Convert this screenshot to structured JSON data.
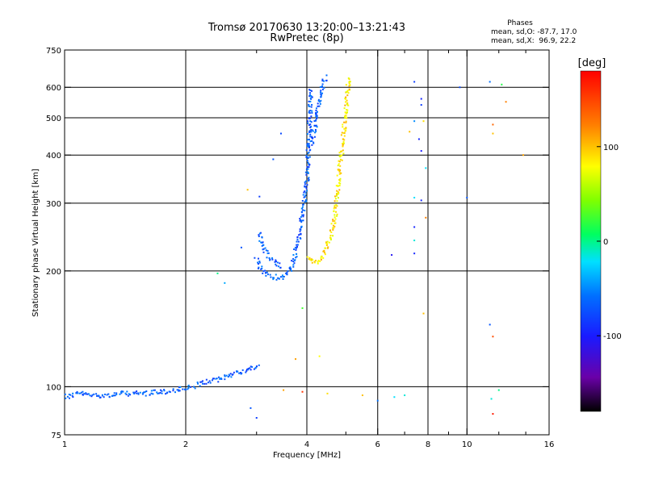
{
  "chart_data": {
    "type": "scatter",
    "title": "Tromsø 20170630 13:20:00–13:21:43",
    "subtitle": "RwPretec (8p)",
    "xlabel": "Frequency [MHz]",
    "ylabel": "Stationary phase Virtual Height [km]",
    "xscale": "log",
    "yscale": "log",
    "xlim": [
      1,
      16
    ],
    "ylim": [
      75,
      750
    ],
    "x_ticks": [
      1,
      2,
      4,
      6,
      8,
      10,
      16
    ],
    "x_tick_labels": [
      "1",
      "2",
      "4",
      "6",
      "8",
      "10",
      "16"
    ],
    "x_minor_ticks": [
      3,
      5,
      7,
      9,
      12,
      14
    ],
    "y_ticks": [
      75,
      100,
      200,
      300,
      400,
      500,
      600,
      750
    ],
    "y_tick_labels": [
      "75",
      "100",
      "200",
      "300",
      "400",
      "500",
      "600",
      "750"
    ],
    "v_grid": [
      2,
      4,
      6,
      8,
      10
    ],
    "h_grid": [
      100,
      200,
      300,
      400,
      500,
      600
    ],
    "phase_info": {
      "header": "Phases",
      "line_o": "mean, sd,O: -87.7, 17.0",
      "line_x": "mean, sd,X:  96.9, 22.2"
    },
    "colorbar": {
      "label": "[deg]",
      "min": -180,
      "max": 180,
      "ticks": [
        100,
        0,
        -100
      ],
      "tick_labels": [
        "100",
        "0",
        "-100"
      ]
    },
    "series": [
      {
        "name": "O-mode",
        "mean_phase": -87.7,
        "sd_phase": 17.0,
        "traces": [
          {
            "x": [
              1.0,
              1.02,
              1.04,
              1.06,
              1.1,
              1.15,
              1.2,
              1.3,
              1.4,
              1.5,
              1.6,
              1.7,
              1.8,
              1.9,
              2.0,
              2.1
            ],
            "y": [
              95,
              94,
              95,
              96,
              96,
              95,
              95,
              95,
              96,
              96,
              96,
              97,
              97,
              98,
              99,
              100
            ]
          },
          {
            "x": [
              2.15,
              2.25,
              2.4,
              2.5,
              2.6,
              2.7,
              2.8,
              2.9,
              3.0,
              3.05
            ],
            "y": [
              101,
              103,
              104,
              106,
              108,
              109,
              110,
              111,
              113,
              114
            ]
          },
          {
            "x": [
              3.0,
              3.05,
              3.1,
              3.2,
              3.3,
              3.4,
              3.5,
              3.6,
              3.7,
              3.8,
              3.9,
              4.0,
              4.05,
              4.1
            ],
            "y": [
              215,
              205,
              200,
              196,
              193,
              192,
              193,
              198,
              210,
              235,
              275,
              340,
              440,
              600
            ]
          },
          {
            "x": [
              3.05,
              3.1,
              3.15,
              3.2,
              3.3,
              3.4,
              3.5
            ],
            "y": [
              250,
              235,
              225,
              218,
              212,
              208,
              205
            ]
          },
          {
            "x": [
              4.1,
              4.2,
              4.3,
              4.4,
              4.5
            ],
            "y": [
              420,
              480,
              560,
              620,
              640
            ]
          }
        ]
      },
      {
        "name": "X-mode",
        "mean_phase": 96.9,
        "sd_phase": 22.2,
        "traces": [
          {
            "x": [
              4.0,
              4.1,
              4.2,
              4.3,
              4.4,
              4.5,
              4.6,
              4.7,
              4.75,
              4.8,
              4.9,
              5.0,
              5.1
            ],
            "y": [
              218,
              214,
              210,
              212,
              220,
              232,
              250,
              280,
              310,
              350,
              420,
              520,
              640
            ]
          }
        ]
      }
    ],
    "scattered_echoes": [
      {
        "x": 3.45,
        "y": 455,
        "phase": -95
      },
      {
        "x": 3.3,
        "y": 390,
        "phase": -90
      },
      {
        "x": 2.4,
        "y": 197,
        "phase": -10
      },
      {
        "x": 2.5,
        "y": 186,
        "phase": -60
      },
      {
        "x": 2.75,
        "y": 230,
        "phase": -90
      },
      {
        "x": 2.85,
        "y": 325,
        "phase": 110
      },
      {
        "x": 3.05,
        "y": 312,
        "phase": -100
      },
      {
        "x": 3.9,
        "y": 160,
        "phase": 20
      },
      {
        "x": 3.75,
        "y": 118,
        "phase": 120
      },
      {
        "x": 4.3,
        "y": 120,
        "phase": 90
      },
      {
        "x": 7.4,
        "y": 620,
        "phase": -100
      },
      {
        "x": 7.7,
        "y": 560,
        "phase": -110
      },
      {
        "x": 7.7,
        "y": 540,
        "phase": -100
      },
      {
        "x": 7.4,
        "y": 490,
        "phase": -70
      },
      {
        "x": 7.8,
        "y": 490,
        "phase": 100
      },
      {
        "x": 7.2,
        "y": 460,
        "phase": 110
      },
      {
        "x": 7.6,
        "y": 440,
        "phase": -110
      },
      {
        "x": 7.7,
        "y": 410,
        "phase": -115
      },
      {
        "x": 7.9,
        "y": 370,
        "phase": -40
      },
      {
        "x": 7.4,
        "y": 310,
        "phase": -40
      },
      {
        "x": 7.7,
        "y": 305,
        "phase": -110
      },
      {
        "x": 7.9,
        "y": 275,
        "phase": 130
      },
      {
        "x": 7.4,
        "y": 260,
        "phase": -110
      },
      {
        "x": 7.4,
        "y": 240,
        "phase": -30
      },
      {
        "x": 6.5,
        "y": 220,
        "phase": -120
      },
      {
        "x": 7.4,
        "y": 222,
        "phase": -110
      },
      {
        "x": 7.8,
        "y": 155,
        "phase": 110
      },
      {
        "x": 9.6,
        "y": 600,
        "phase": -95
      },
      {
        "x": 10.0,
        "y": 310,
        "phase": -90
      },
      {
        "x": 11.4,
        "y": 620,
        "phase": -80
      },
      {
        "x": 12.2,
        "y": 610,
        "phase": 10
      },
      {
        "x": 12.5,
        "y": 550,
        "phase": 130
      },
      {
        "x": 11.6,
        "y": 480,
        "phase": 140
      },
      {
        "x": 11.6,
        "y": 455,
        "phase": 110
      },
      {
        "x": 13.8,
        "y": 400,
        "phase": 120
      },
      {
        "x": 11.4,
        "y": 145,
        "phase": -90
      },
      {
        "x": 11.6,
        "y": 135,
        "phase": 150
      },
      {
        "x": 12.0,
        "y": 98,
        "phase": -10
      },
      {
        "x": 11.5,
        "y": 93,
        "phase": -30
      },
      {
        "x": 11.6,
        "y": 85,
        "phase": 170
      },
      {
        "x": 6.6,
        "y": 94,
        "phase": -40
      },
      {
        "x": 7.0,
        "y": 95,
        "phase": -30
      },
      {
        "x": 6.0,
        "y": 92,
        "phase": -80
      },
      {
        "x": 5.5,
        "y": 95,
        "phase": 110
      },
      {
        "x": 4.5,
        "y": 96,
        "phase": 100
      },
      {
        "x": 3.9,
        "y": 97,
        "phase": 160
      },
      {
        "x": 3.5,
        "y": 98,
        "phase": 120
      },
      {
        "x": 2.9,
        "y": 88,
        "phase": -90
      },
      {
        "x": 3.0,
        "y": 83,
        "phase": -100
      }
    ]
  }
}
